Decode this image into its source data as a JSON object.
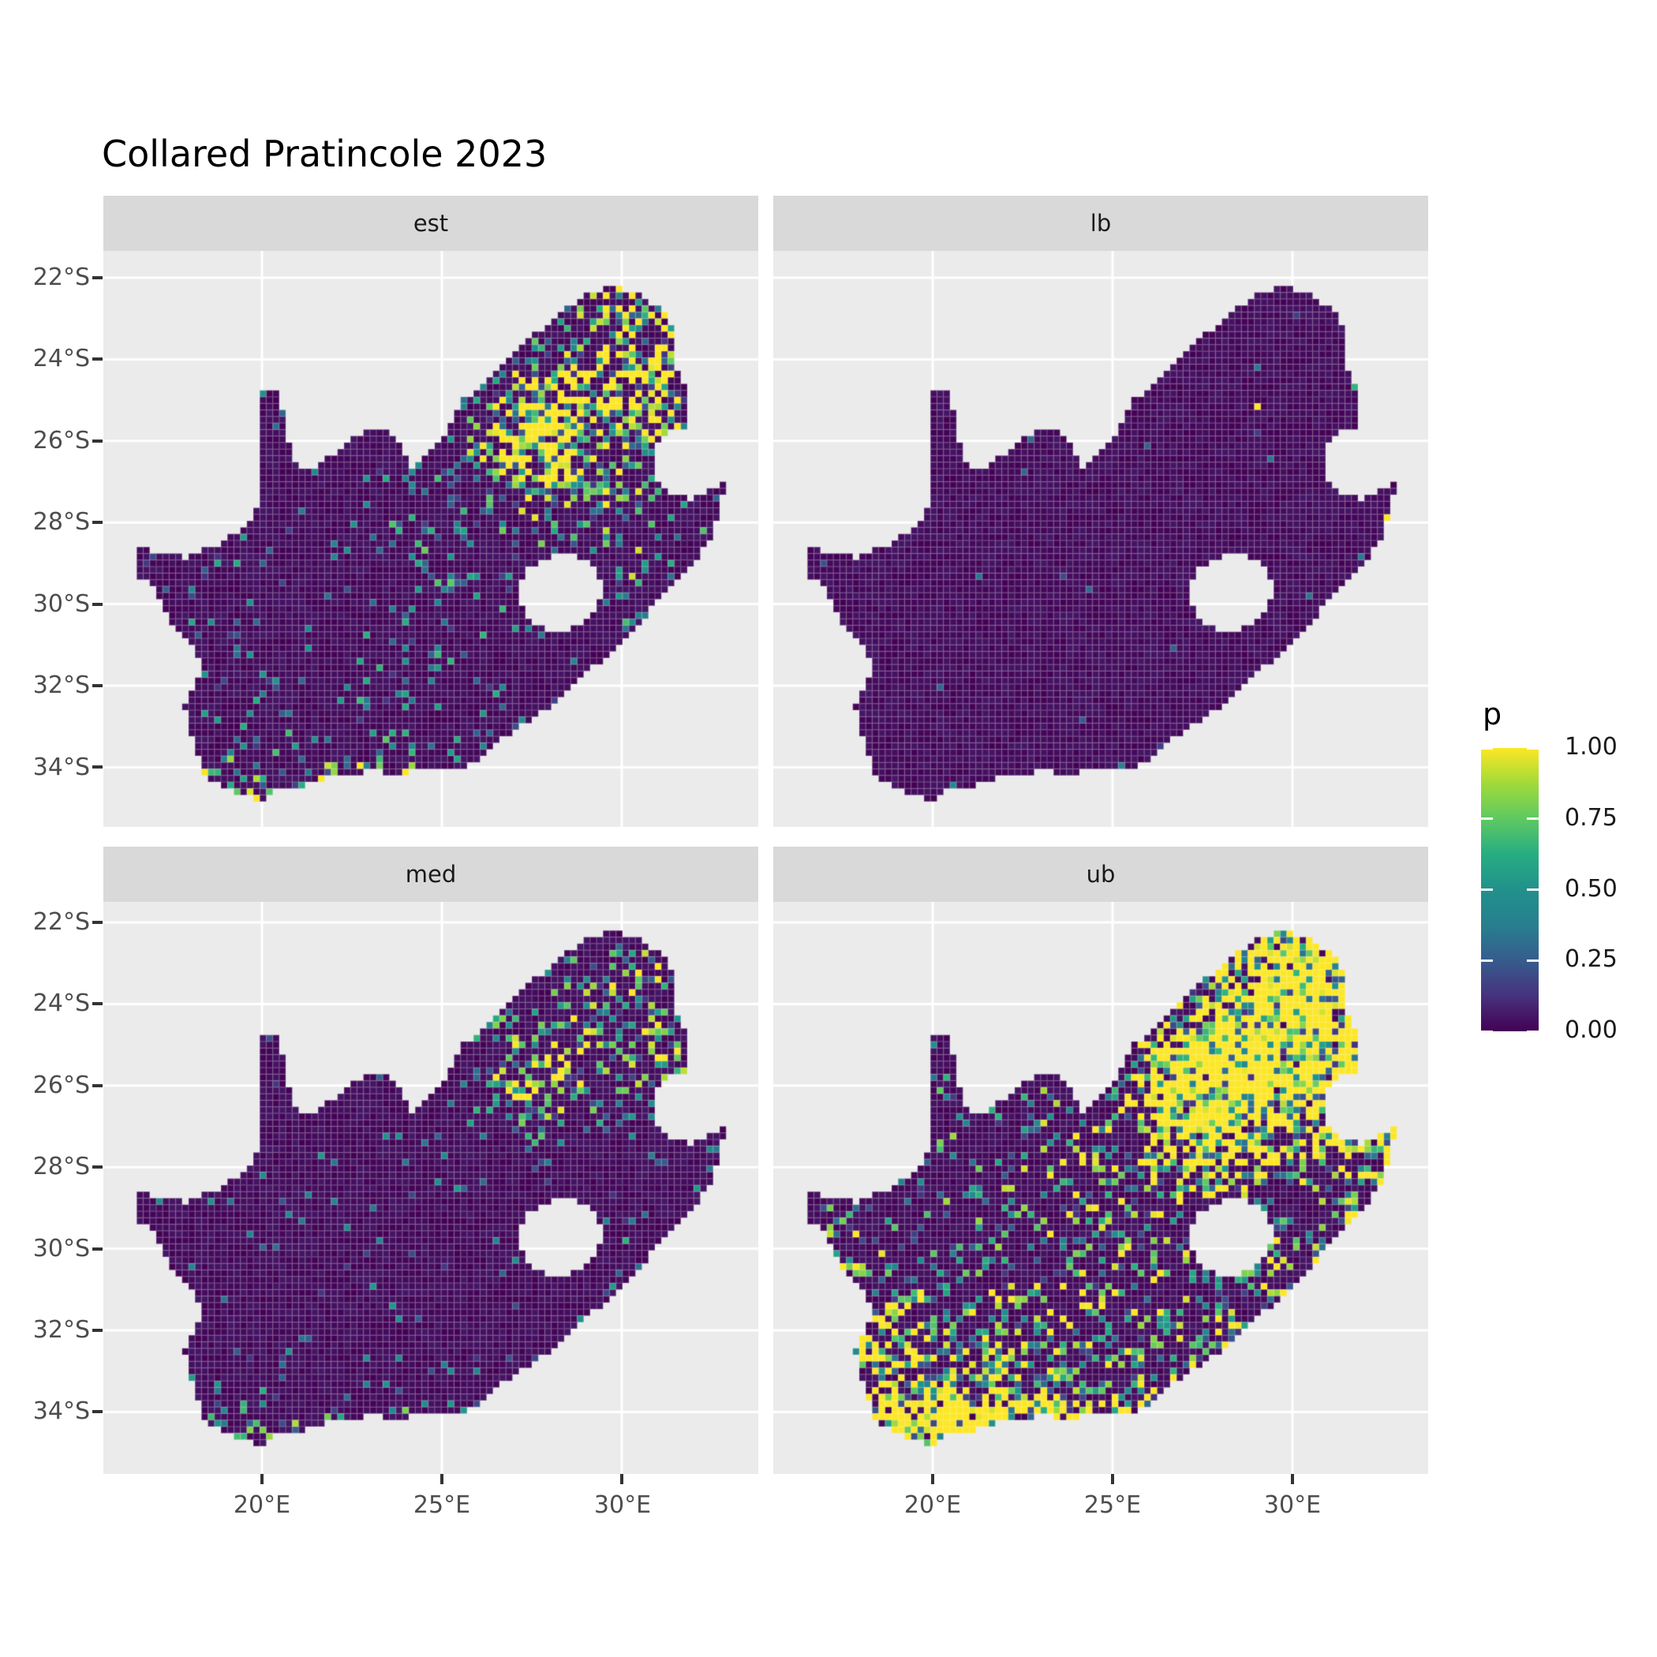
{
  "title": "Collared Pratincole 2023",
  "legend": {
    "title": "p",
    "labels": [
      "1.00",
      "0.75",
      "0.50",
      "0.25",
      "0.00"
    ],
    "values": [
      1.0,
      0.75,
      0.5,
      0.25,
      0.0
    ]
  },
  "axes": {
    "y_ticks": [
      "22°S",
      "24°S",
      "26°S",
      "28°S",
      "30°S",
      "32°S",
      "34°S"
    ],
    "x_ticks": [
      "20°E",
      "25°E",
      "30°E"
    ]
  },
  "colors": {
    "panel_bg": "#EBEBEB",
    "strip_bg": "#D9D9D9",
    "grid": "#FFFFFF",
    "axis_text": "#4D4D4D",
    "tick": "#333333",
    "title_text": "#000000",
    "viridis": [
      "#440154",
      "#46327E",
      "#365C8D",
      "#277F8E",
      "#21918C",
      "#27AD81",
      "#5EC962",
      "#A0DA39",
      "#FDE725"
    ]
  },
  "chart_data": {
    "type": "heatmap",
    "title": "Collared Pratincole 2023",
    "subtitle": "",
    "xlabel": "",
    "ylabel": "",
    "legend_title": "p",
    "legend_breaks": [
      0,
      0.25,
      0.5,
      0.75,
      1.0
    ],
    "x_breaks_lon_east": [
      20,
      25,
      30
    ],
    "y_breaks_lat_south": [
      22,
      24,
      26,
      28,
      30,
      32,
      34
    ],
    "x_domain_lon_east": [
      15.57,
      33.85
    ],
    "y_domain_lat_south": [
      21.34,
      35.5
    ],
    "cell_size_deg": [
      0.18,
      0.16
    ],
    "facets": [
      {
        "label": "est",
        "description": "posterior mean occupancy: mostly near 0, scattered mid values, bright clusters in Gauteng/Limpopo and along south coast",
        "speckle_density": 0.05,
        "speckle_max": 0.5,
        "seed": 7,
        "hotspots": [
          [
            27.9,
            25.95,
            0.9,
            1.15
          ],
          [
            26.9,
            26.4,
            0.6,
            0.5
          ],
          [
            28.6,
            24.8,
            1.2,
            0.45
          ],
          [
            29.9,
            23.5,
            1.3,
            0.55
          ],
          [
            30.9,
            23.1,
            0.8,
            0.5
          ],
          [
            31.4,
            24.9,
            0.8,
            0.65
          ],
          [
            30.9,
            25.9,
            0.55,
            0.5
          ],
          [
            28.8,
            26.9,
            0.9,
            0.35
          ],
          [
            30.0,
            27.7,
            0.7,
            0.3
          ],
          [
            30.45,
            29.35,
            0.55,
            0.45
          ],
          [
            26.6,
            28.5,
            1.4,
            0.15
          ],
          [
            24.5,
            28.0,
            1.2,
            0.12
          ],
          [
            23.0,
            33.3,
            1.5,
            0.18
          ],
          [
            19.3,
            33.6,
            0.8,
            0.28
          ],
          [
            18.45,
            34.25,
            0.22,
            0.8
          ],
          [
            19.2,
            34.6,
            0.22,
            0.85
          ],
          [
            20.0,
            34.75,
            0.25,
            0.9
          ],
          [
            20.9,
            34.42,
            0.22,
            0.7
          ],
          [
            21.9,
            34.2,
            0.22,
            0.6
          ],
          [
            23.0,
            34.08,
            0.22,
            0.65
          ],
          [
            24.1,
            34.1,
            0.22,
            0.6
          ],
          [
            25.2,
            33.95,
            0.22,
            0.6
          ],
          [
            26.2,
            33.72,
            0.22,
            0.55
          ],
          [
            27.3,
            32.95,
            0.22,
            0.5
          ],
          [
            28.4,
            32.25,
            0.2,
            0.35
          ],
          [
            30.3,
            30.85,
            0.2,
            0.5
          ],
          [
            31.0,
            30.05,
            0.2,
            0.4
          ],
          [
            32.3,
            28.3,
            0.2,
            0.3
          ]
        ],
        "bright_cells": []
      },
      {
        "label": "lb",
        "description": "lower bound: nearly everywhere 0 with a handful of isolated bright cells",
        "speckle_density": 0.003,
        "speckle_max": 0.25,
        "seed": 13,
        "hotspots": [],
        "bright_cells": [
          [
            32.0,
            23.85,
            1.0
          ],
          [
            32.15,
            23.85,
            1.0
          ],
          [
            29.0,
            25.15,
            1.0
          ],
          [
            31.75,
            24.75,
            0.65
          ],
          [
            32.0,
            25.4,
            1.0
          ],
          [
            32.1,
            25.6,
            1.0
          ],
          [
            32.05,
            25.1,
            0.6
          ],
          [
            31.9,
            24.0,
            0.45
          ],
          [
            32.6,
            27.8,
            0.65
          ],
          [
            32.65,
            27.95,
            1.0
          ],
          [
            32.7,
            28.4,
            0.5
          ],
          [
            31.5,
            29.45,
            0.6
          ],
          [
            31.3,
            29.8,
            0.5
          ],
          [
            20.6,
            34.45,
            0.45
          ],
          [
            25.3,
            34.0,
            0.4
          ]
        ]
      },
      {
        "label": "med",
        "description": "median: mostly 0, moderate speckles in north-east and along south coast",
        "speckle_density": 0.028,
        "speckle_max": 0.42,
        "seed": 29,
        "hotspots": [
          [
            27.8,
            26.1,
            0.85,
            0.6
          ],
          [
            26.9,
            26.5,
            0.5,
            0.3
          ],
          [
            28.6,
            24.9,
            1.1,
            0.3
          ],
          [
            29.9,
            23.5,
            1.2,
            0.35
          ],
          [
            30.9,
            23.2,
            0.7,
            0.4
          ],
          [
            31.5,
            24.9,
            0.75,
            0.5
          ],
          [
            31.0,
            26.0,
            0.5,
            0.35
          ],
          [
            30.45,
            29.4,
            0.5,
            0.3
          ],
          [
            26.5,
            25.0,
            0.8,
            0.25
          ],
          [
            19.4,
            33.7,
            0.7,
            0.22
          ],
          [
            18.45,
            34.25,
            0.22,
            0.55
          ],
          [
            19.2,
            34.6,
            0.22,
            0.6
          ],
          [
            20.0,
            34.75,
            0.25,
            0.6
          ],
          [
            20.9,
            34.42,
            0.22,
            0.45
          ],
          [
            21.9,
            34.2,
            0.22,
            0.4
          ],
          [
            23.0,
            34.08,
            0.22,
            0.4
          ],
          [
            24.1,
            34.1,
            0.22,
            0.4
          ],
          [
            25.2,
            33.95,
            0.22,
            0.4
          ],
          [
            26.2,
            33.72,
            0.22,
            0.35
          ],
          [
            27.3,
            32.95,
            0.22,
            0.3
          ],
          [
            30.3,
            30.85,
            0.2,
            0.35
          ],
          [
            31.0,
            30.05,
            0.2,
            0.3
          ],
          [
            32.3,
            28.3,
            0.2,
            0.25
          ]
        ],
        "bright_cells": []
      },
      {
        "label": "ub",
        "description": "upper bound: large yellow/green clusters in the north-east, yellow rim along the entire coast, many interior speckles",
        "speckle_density": 0.12,
        "speckle_max": 0.75,
        "seed": 47,
        "hotspots": [
          [
            28.0,
            25.9,
            1.3,
            1.7
          ],
          [
            26.8,
            26.6,
            0.9,
            0.8
          ],
          [
            29.4,
            23.4,
            1.5,
            1.0
          ],
          [
            30.9,
            23.0,
            0.9,
            1.0
          ],
          [
            31.3,
            24.7,
            1.0,
            1.1
          ],
          [
            31.0,
            26.2,
            0.8,
            0.85
          ],
          [
            31.6,
            27.1,
            0.7,
            0.9
          ],
          [
            29.0,
            27.8,
            0.9,
            0.4
          ],
          [
            24.8,
            28.3,
            1.6,
            0.28
          ],
          [
            21.5,
            32.7,
            1.3,
            0.35
          ],
          [
            19.6,
            33.6,
            1.1,
            0.6
          ],
          [
            18.6,
            32.2,
            0.8,
            0.45
          ],
          [
            22.8,
            33.9,
            1.2,
            0.5
          ],
          [
            25.8,
            31.5,
            1.2,
            0.28
          ],
          [
            28.9,
            30.3,
            0.8,
            0.5
          ],
          [
            17.5,
            30.3,
            0.7,
            0.4
          ],
          [
            20.3,
            34.2,
            0.8,
            0.8
          ],
          [
            18.45,
            34.25,
            0.3,
            1.3
          ],
          [
            19.2,
            34.6,
            0.3,
            1.4
          ],
          [
            20.0,
            34.78,
            0.32,
            1.5
          ],
          [
            20.9,
            34.42,
            0.3,
            1.2
          ],
          [
            21.9,
            34.2,
            0.3,
            1.0
          ],
          [
            23.0,
            34.08,
            0.3,
            1.0
          ],
          [
            24.1,
            34.1,
            0.3,
            1.0
          ],
          [
            25.2,
            33.95,
            0.3,
            1.0
          ],
          [
            26.2,
            33.72,
            0.3,
            1.0
          ],
          [
            27.3,
            32.95,
            0.3,
            1.0
          ],
          [
            28.4,
            32.25,
            0.28,
            0.9
          ],
          [
            29.4,
            31.5,
            0.28,
            0.9
          ],
          [
            30.3,
            30.85,
            0.28,
            1.0
          ],
          [
            31.0,
            30.05,
            0.28,
            1.0
          ],
          [
            31.7,
            29.15,
            0.28,
            1.0
          ],
          [
            32.3,
            28.3,
            0.28,
            1.0
          ],
          [
            32.7,
            27.3,
            0.28,
            1.1
          ],
          [
            17.0,
            29.5,
            0.25,
            0.5
          ],
          [
            17.5,
            30.5,
            0.25,
            0.6
          ],
          [
            18.2,
            31.5,
            0.25,
            0.55
          ],
          [
            18.0,
            32.6,
            0.25,
            0.6
          ]
        ],
        "bright_cells": []
      }
    ],
    "map": {
      "region": "South Africa",
      "outline": [
        [
          16.62,
          28.65
        ],
        [
          17.2,
          28.75
        ],
        [
          17.9,
          28.85
        ],
        [
          18.6,
          28.6
        ],
        [
          19.25,
          28.3
        ],
        [
          19.7,
          27.9
        ],
        [
          19.99,
          27.5
        ],
        [
          19.99,
          24.78
        ],
        [
          20.4,
          24.82
        ],
        [
          20.55,
          25.2
        ],
        [
          20.7,
          25.8
        ],
        [
          20.82,
          26.35
        ],
        [
          21.05,
          26.77
        ],
        [
          21.6,
          26.55
        ],
        [
          22.1,
          26.25
        ],
        [
          22.7,
          25.85
        ],
        [
          23.15,
          25.68
        ],
        [
          23.6,
          25.78
        ],
        [
          24.2,
          26.65
        ],
        [
          24.75,
          26.15
        ],
        [
          25.2,
          25.75
        ],
        [
          25.5,
          25.05
        ],
        [
          26.1,
          24.72
        ],
        [
          26.9,
          24.0
        ],
        [
          27.65,
          23.33
        ],
        [
          28.45,
          22.77
        ],
        [
          29.2,
          22.34
        ],
        [
          29.85,
          22.2
        ],
        [
          30.55,
          22.46
        ],
        [
          31.2,
          22.86
        ],
        [
          31.47,
          23.43
        ],
        [
          31.53,
          24.2
        ],
        [
          31.75,
          24.72
        ],
        [
          31.88,
          25.37
        ],
        [
          31.82,
          25.73
        ],
        [
          31.3,
          25.78
        ],
        [
          30.97,
          26.1
        ],
        [
          30.84,
          26.6
        ],
        [
          31.0,
          27.05
        ],
        [
          31.35,
          27.32
        ],
        [
          31.85,
          27.42
        ],
        [
          32.25,
          27.35
        ],
        [
          32.9,
          26.95
        ],
        [
          32.55,
          28.3
        ],
        [
          32.05,
          28.9
        ],
        [
          31.45,
          29.45
        ],
        [
          30.75,
          30.2
        ],
        [
          29.95,
          30.95
        ],
        [
          29.1,
          31.65
        ],
        [
          28.1,
          32.45
        ],
        [
          27.0,
          33.1
        ],
        [
          26.0,
          33.8
        ],
        [
          25.6,
          34.05
        ],
        [
          24.9,
          33.98
        ],
        [
          24.0,
          34.15
        ],
        [
          23.0,
          34.1
        ],
        [
          22.1,
          34.2
        ],
        [
          21.1,
          34.48
        ],
        [
          20.3,
          34.52
        ],
        [
          19.98,
          34.85
        ],
        [
          19.35,
          34.63
        ],
        [
          18.82,
          34.42
        ],
        [
          18.43,
          34.2
        ],
        [
          18.32,
          33.88
        ],
        [
          17.98,
          33.15
        ],
        [
          17.85,
          32.45
        ],
        [
          18.35,
          31.65
        ],
        [
          18.05,
          30.95
        ],
        [
          17.3,
          30.25
        ],
        [
          17.05,
          29.55
        ],
        [
          16.5,
          29.35
        ],
        [
          16.45,
          28.9
        ]
      ],
      "lesotho_hole": [
        [
          27.1,
          29.7
        ],
        [
          27.35,
          29.15
        ],
        [
          27.8,
          28.9
        ],
        [
          28.45,
          28.72
        ],
        [
          29.1,
          29.0
        ],
        [
          29.45,
          29.45
        ],
        [
          29.35,
          30.05
        ],
        [
          28.8,
          30.5
        ],
        [
          28.1,
          30.75
        ],
        [
          27.4,
          30.4
        ]
      ]
    }
  }
}
